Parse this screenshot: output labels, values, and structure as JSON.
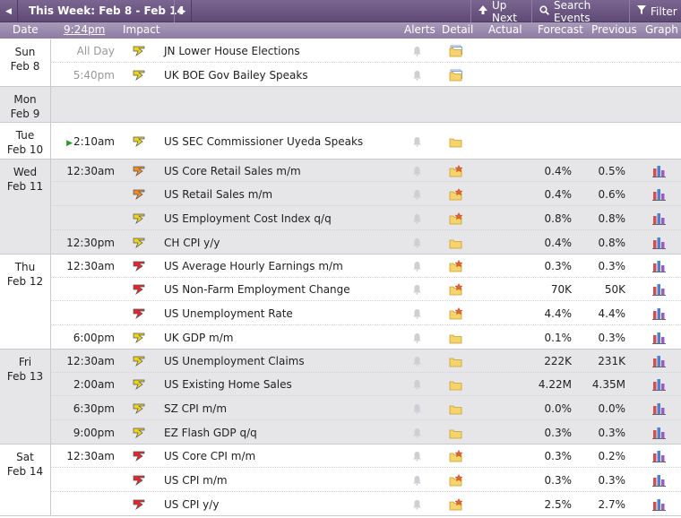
{
  "toolbar": {
    "prev_icon": "◀",
    "week_label": "This Week: Feb 8 - Feb 14",
    "next_icon": "▶",
    "up_next_label": "Up Next",
    "search_label": "Search Events",
    "filter_label": "Filter"
  },
  "columns": {
    "date": "Date",
    "time": "9:24pm",
    "impact": "Impact",
    "alerts": "Alerts",
    "detail": "Detail",
    "actual": "Actual",
    "forecast": "Forecast",
    "previous": "Previous",
    "graph": "Graph"
  },
  "colors": {
    "high": "#e8242c",
    "medium": "#f08a24",
    "low": "#e8d41c",
    "header": "#8e7ca3"
  },
  "days": [
    {
      "dow": "Sun",
      "date": "Feb 8",
      "events": [
        {
          "time": "All Day",
          "time_muted": true,
          "impact": "low",
          "event": "JN Lower House Elections",
          "forecast": "",
          "previous": "",
          "detail": "folder-stack",
          "graph": false
        },
        {
          "time": "5:40pm",
          "time_muted": true,
          "impact": "low",
          "event": "UK BOE Gov Bailey Speaks",
          "forecast": "",
          "previous": "",
          "detail": "folder-stack",
          "graph": false
        }
      ]
    },
    {
      "dow": "Mon",
      "date": "Feb 9",
      "events": []
    },
    {
      "dow": "Tue",
      "date": "Feb 10",
      "events": [
        {
          "time": "2:10am",
          "next": true,
          "impact": "low",
          "event": "US SEC Commissioner Uyeda Speaks",
          "forecast": "",
          "previous": "",
          "detail": "folder",
          "graph": false
        }
      ]
    },
    {
      "dow": "Wed",
      "date": "Feb 11",
      "events": [
        {
          "time": "12:30am",
          "impact": "medium",
          "event": "US Core Retail Sales m/m",
          "forecast": "0.4%",
          "previous": "0.5%",
          "detail": "folder-new",
          "graph": true
        },
        {
          "time": "",
          "impact": "medium",
          "event": "US Retail Sales m/m",
          "forecast": "0.4%",
          "previous": "0.6%",
          "detail": "folder-new",
          "graph": true
        },
        {
          "time": "",
          "impact": "low",
          "event": "US Employment Cost Index q/q",
          "forecast": "0.8%",
          "previous": "0.8%",
          "detail": "folder-new",
          "graph": true
        },
        {
          "time": "12:30pm",
          "impact": "low",
          "event": "CH CPI y/y",
          "forecast": "0.4%",
          "previous": "0.8%",
          "detail": "folder",
          "graph": true
        }
      ]
    },
    {
      "dow": "Thu",
      "date": "Feb 12",
      "events": [
        {
          "time": "12:30am",
          "impact": "high",
          "event": "US Average Hourly Earnings m/m",
          "forecast": "0.3%",
          "previous": "0.3%",
          "detail": "folder-new",
          "graph": true
        },
        {
          "time": "",
          "impact": "high",
          "event": "US Non-Farm Employment Change",
          "forecast": "70K",
          "previous": "50K",
          "detail": "folder-new",
          "graph": true
        },
        {
          "time": "",
          "impact": "high",
          "event": "US Unemployment Rate",
          "forecast": "4.4%",
          "previous": "4.4%",
          "detail": "folder-new",
          "graph": true
        },
        {
          "time": "6:00pm",
          "impact": "low",
          "event": "UK GDP m/m",
          "forecast": "0.1%",
          "previous": "0.3%",
          "detail": "folder",
          "graph": true
        }
      ]
    },
    {
      "dow": "Fri",
      "date": "Feb 13",
      "events": [
        {
          "time": "12:30am",
          "impact": "low",
          "event": "US Unemployment Claims",
          "forecast": "222K",
          "previous": "231K",
          "detail": "folder",
          "graph": true
        },
        {
          "time": "2:00am",
          "impact": "low",
          "event": "US Existing Home Sales",
          "forecast": "4.22M",
          "previous": "4.35M",
          "detail": "folder",
          "graph": true
        },
        {
          "time": "6:30pm",
          "impact": "low",
          "event": "SZ CPI m/m",
          "forecast": "0.0%",
          "previous": "0.0%",
          "detail": "folder",
          "graph": true
        },
        {
          "time": "9:00pm",
          "impact": "low",
          "event": "EZ Flash GDP q/q",
          "forecast": "0.3%",
          "previous": "0.3%",
          "detail": "folder",
          "graph": true
        }
      ]
    },
    {
      "dow": "Sat",
      "date": "Feb 14",
      "events": [
        {
          "time": "12:30am",
          "impact": "high",
          "event": "US Core CPI m/m",
          "forecast": "0.3%",
          "previous": "0.2%",
          "detail": "folder-new",
          "graph": true
        },
        {
          "time": "",
          "impact": "high",
          "event": "US CPI m/m",
          "forecast": "0.3%",
          "previous": "0.3%",
          "detail": "folder-new",
          "graph": true
        },
        {
          "time": "",
          "impact": "high",
          "event": "US CPI y/y",
          "forecast": "2.5%",
          "previous": "2.7%",
          "detail": "folder-new",
          "graph": true
        }
      ]
    }
  ]
}
